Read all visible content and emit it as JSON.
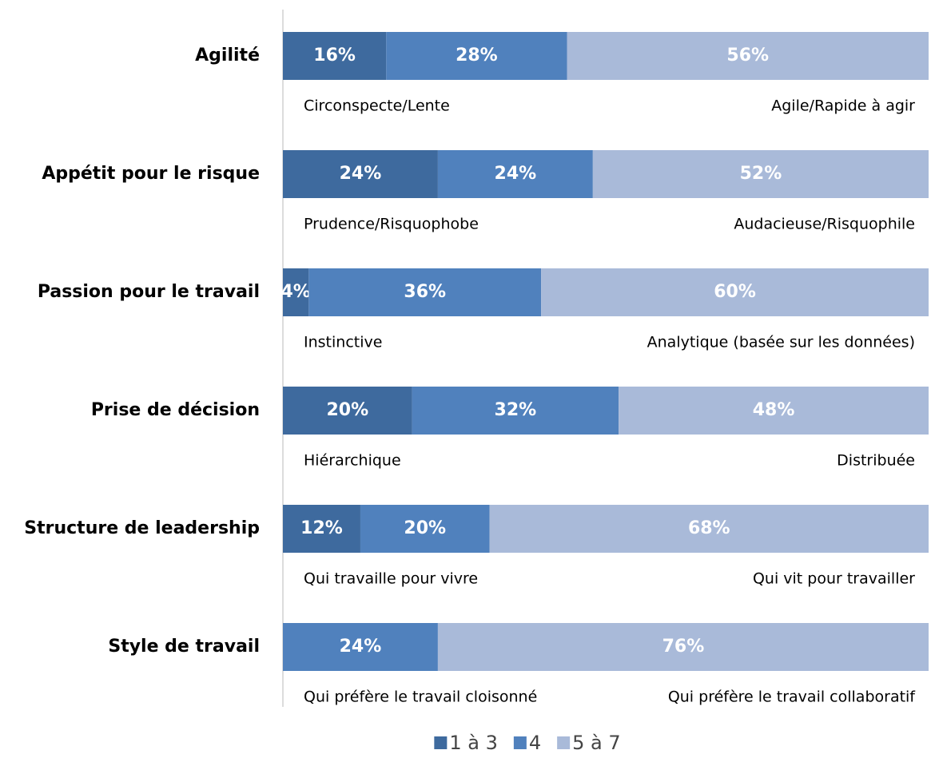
{
  "chart_data": {
    "type": "stacked_bar_horizontal",
    "categories": [
      "Agilité",
      "Appétit pour le risque",
      "Passion pour le travail",
      "Prise de décision",
      "Structure de leadership",
      "Style de travail"
    ],
    "low_labels": [
      "Circonspecte/Lente",
      "Prudence/Risquophobe",
      "Instinctive",
      "Hiérarchique",
      "Qui travaille pour vivre",
      "Qui préfère le travail cloisonné"
    ],
    "high_labels": [
      "Agile/Rapide à agir",
      "Audacieuse/Risquophile",
      "Analytique (basée sur les données)",
      "Distribuée",
      "Qui vit pour travailler",
      "Qui préfère le travail collaboratif"
    ],
    "series": [
      {
        "name": "1 à 3",
        "color": "#3e6a9e",
        "values": [
          16,
          24,
          4,
          20,
          12,
          null
        ],
        "value_labels": [
          "16%",
          "24%",
          "4%",
          "20%",
          "12%",
          null
        ]
      },
      {
        "name": "4",
        "color": "#5081bd",
        "values": [
          28,
          24,
          36,
          32,
          20,
          24
        ],
        "value_labels": [
          "28%",
          "24%",
          "36%",
          "32%",
          "20%",
          "24%"
        ]
      },
      {
        "name": "5 à 7",
        "color": "#a9bad9",
        "values": [
          56,
          52,
          60,
          48,
          68,
          76
        ],
        "value_labels": [
          "56%",
          "52%",
          "60%",
          "48%",
          "68%",
          "76%"
        ]
      }
    ],
    "xlim": [
      0,
      100
    ],
    "legend": "bottom"
  }
}
